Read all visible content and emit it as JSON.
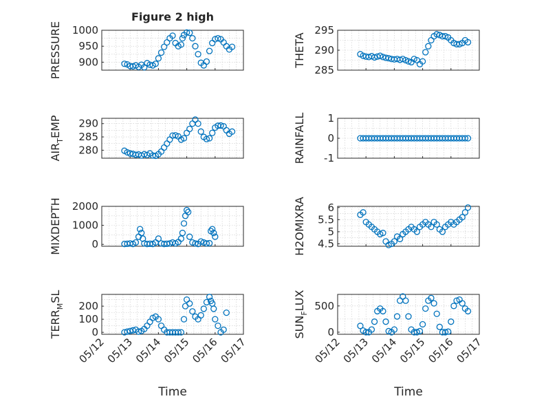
{
  "figure": {
    "title": "Figure 2 high",
    "xlabel": "Time",
    "marker_color": "#0072bd"
  },
  "chart_data": [
    {
      "type": "scatter",
      "ylabel": "PRESSURE",
      "ylabel_sub": "",
      "ylabel_tail": "",
      "ylim": [
        875,
        1000
      ],
      "yticks": [
        900,
        950,
        1000
      ],
      "xlim": [
        0,
        5
      ],
      "xticks": [
        0,
        1,
        2,
        3,
        4,
        5
      ],
      "xticklabels": [
        "05/12",
        "05/13",
        "05/14",
        "05/15",
        "05/16",
        "05/17"
      ],
      "x": [
        0.8,
        0.9,
        1.0,
        1.1,
        1.2,
        1.3,
        1.4,
        1.5,
        1.6,
        1.7,
        1.8,
        1.9,
        2.0,
        2.1,
        2.2,
        2.3,
        2.4,
        2.5,
        2.6,
        2.7,
        2.8,
        2.85,
        2.9,
        3.0,
        3.1,
        3.2,
        3.3,
        3.4,
        3.5,
        3.6,
        3.7,
        3.8,
        3.9,
        4.0,
        4.1,
        4.2,
        4.3,
        4.4,
        4.5,
        4.6
      ],
      "y": [
        895,
        893,
        888,
        887,
        890,
        885,
        892,
        884,
        897,
        892,
        890,
        895,
        912,
        930,
        948,
        962,
        975,
        983,
        960,
        950,
        955,
        975,
        985,
        993,
        992,
        975,
        950,
        925,
        898,
        890,
        902,
        935,
        960,
        972,
        975,
        972,
        962,
        950,
        940,
        948
      ]
    },
    {
      "type": "scatter",
      "ylabel": "THETA",
      "ylabel_sub": "",
      "ylabel_tail": "",
      "ylim": [
        285,
        295
      ],
      "yticks": [
        285,
        290,
        295
      ],
      "xlim": [
        0,
        5
      ],
      "xticks": [
        0,
        1,
        2,
        3,
        4,
        5
      ],
      "xticklabels": [
        "05/12",
        "05/13",
        "05/14",
        "05/15",
        "05/16",
        "05/17"
      ],
      "x": [
        0.8,
        0.9,
        1.0,
        1.1,
        1.2,
        1.3,
        1.4,
        1.5,
        1.6,
        1.7,
        1.8,
        1.9,
        2.0,
        2.1,
        2.2,
        2.3,
        2.4,
        2.5,
        2.6,
        2.7,
        2.8,
        2.9,
        3.0,
        3.1,
        3.2,
        3.3,
        3.4,
        3.5,
        3.6,
        3.7,
        3.8,
        3.9,
        4.0,
        4.1,
        4.2,
        4.3,
        4.4,
        4.5,
        4.6
      ],
      "y": [
        289.0,
        288.6,
        288.4,
        288.3,
        288.5,
        288.2,
        288.4,
        288.6,
        288.3,
        288.1,
        288.0,
        287.8,
        287.7,
        287.8,
        287.6,
        287.8,
        287.5,
        287.2,
        287.0,
        287.8,
        287.5,
        286.5,
        287.2,
        289.5,
        291.0,
        292.5,
        293.5,
        294.0,
        293.8,
        293.5,
        293.5,
        293.2,
        292.5,
        291.8,
        291.5,
        291.5,
        291.8,
        292.5,
        292.0
      ]
    },
    {
      "type": "scatter",
      "ylabel": "AIR",
      "ylabel_sub": "T",
      "ylabel_tail": "EMP",
      "ylim": [
        277,
        292
      ],
      "yticks": [
        280,
        285,
        290
      ],
      "xlim": [
        0,
        5
      ],
      "xticks": [
        0,
        1,
        2,
        3,
        4,
        5
      ],
      "xticklabels": [
        "05/12",
        "05/13",
        "05/14",
        "05/15",
        "05/16",
        "05/17"
      ],
      "x": [
        0.8,
        0.9,
        1.0,
        1.1,
        1.2,
        1.3,
        1.4,
        1.5,
        1.6,
        1.7,
        1.8,
        1.9,
        2.0,
        2.1,
        2.2,
        2.3,
        2.4,
        2.5,
        2.6,
        2.7,
        2.8,
        2.9,
        3.0,
        3.1,
        3.2,
        3.3,
        3.4,
        3.5,
        3.6,
        3.7,
        3.8,
        3.9,
        4.0,
        4.1,
        4.2,
        4.3,
        4.4,
        4.5,
        4.6
      ],
      "y": [
        279.8,
        279.2,
        278.8,
        278.6,
        278.3,
        278.4,
        278.0,
        278.5,
        278.2,
        278.8,
        278.0,
        277.9,
        278.5,
        279.5,
        281.0,
        282.5,
        284.0,
        285.5,
        285.6,
        285.2,
        284.0,
        284.5,
        286.5,
        288.0,
        290.0,
        291.5,
        290.0,
        287.0,
        285.0,
        284.2,
        284.5,
        286.5,
        288.5,
        289.2,
        289.3,
        289.0,
        287.5,
        286.2,
        287.0
      ]
    },
    {
      "type": "scatter",
      "ylabel": "RAINFALL",
      "ylabel_sub": "",
      "ylabel_tail": "",
      "ylim": [
        -1,
        1
      ],
      "yticks": [
        -1,
        0,
        1
      ],
      "xlim": [
        0,
        5
      ],
      "xticks": [
        0,
        1,
        2,
        3,
        4,
        5
      ],
      "xticklabels": [
        "05/12",
        "05/13",
        "05/14",
        "05/15",
        "05/16",
        "05/17"
      ],
      "x": [
        0.8,
        0.9,
        1.0,
        1.1,
        1.2,
        1.3,
        1.4,
        1.5,
        1.6,
        1.7,
        1.8,
        1.9,
        2.0,
        2.1,
        2.2,
        2.3,
        2.4,
        2.5,
        2.6,
        2.7,
        2.8,
        2.9,
        3.0,
        3.1,
        3.2,
        3.3,
        3.4,
        3.5,
        3.6,
        3.7,
        3.8,
        3.9,
        4.0,
        4.1,
        4.2,
        4.3,
        4.4,
        4.5,
        4.6
      ],
      "y": [
        0,
        0,
        0,
        0,
        0,
        0,
        0,
        0,
        0,
        0,
        0,
        0,
        0,
        0,
        0,
        0,
        0,
        0,
        0,
        0,
        0,
        0,
        0,
        0,
        0,
        0,
        0,
        0,
        0,
        0,
        0,
        0,
        0,
        0,
        0,
        0,
        0,
        0,
        0
      ]
    },
    {
      "type": "scatter",
      "ylabel": "MIXDEPTH",
      "ylabel_sub": "",
      "ylabel_tail": "",
      "ylim": [
        -100,
        2000
      ],
      "yticks": [
        0,
        1000,
        2000
      ],
      "xlim": [
        0,
        5
      ],
      "xticks": [
        0,
        1,
        2,
        3,
        4,
        5
      ],
      "xticklabels": [
        "05/12",
        "05/13",
        "05/14",
        "05/15",
        "05/16",
        "05/17"
      ],
      "x": [
        0.8,
        0.9,
        1.0,
        1.1,
        1.2,
        1.3,
        1.35,
        1.4,
        1.45,
        1.5,
        1.6,
        1.7,
        1.8,
        1.9,
        2.0,
        2.1,
        2.2,
        2.3,
        2.4,
        2.5,
        2.6,
        2.7,
        2.8,
        2.85,
        2.9,
        2.95,
        3.0,
        3.05,
        3.1,
        3.2,
        3.3,
        3.4,
        3.5,
        3.6,
        3.7,
        3.8,
        3.85,
        3.9,
        3.95,
        4.0
      ],
      "y": [
        20,
        30,
        50,
        20,
        100,
        400,
        800,
        600,
        300,
        50,
        20,
        30,
        20,
        100,
        300,
        50,
        20,
        30,
        50,
        100,
        50,
        120,
        300,
        600,
        1100,
        1500,
        1800,
        1700,
        400,
        100,
        50,
        20,
        150,
        100,
        50,
        60,
        700,
        800,
        600,
        400
      ]
    },
    {
      "type": "scatter",
      "ylabel": "H2OMIXRA",
      "ylabel_sub": "",
      "ylabel_tail": "",
      "ylim": [
        4.4,
        6.05
      ],
      "yticks": [
        4.5,
        5,
        5.5,
        6
      ],
      "xlim": [
        0,
        5
      ],
      "xticks": [
        0,
        1,
        2,
        3,
        4,
        5
      ],
      "xticklabels": [
        "05/12",
        "05/13",
        "05/14",
        "05/15",
        "05/16",
        "05/17"
      ],
      "x": [
        0.8,
        0.9,
        1.0,
        1.1,
        1.2,
        1.3,
        1.4,
        1.5,
        1.6,
        1.7,
        1.8,
        1.9,
        2.0,
        2.1,
        2.2,
        2.3,
        2.4,
        2.5,
        2.6,
        2.7,
        2.8,
        2.9,
        3.0,
        3.1,
        3.2,
        3.3,
        3.4,
        3.5,
        3.6,
        3.7,
        3.8,
        3.9,
        4.0,
        4.1,
        4.2,
        4.3,
        4.4,
        4.5,
        4.6
      ],
      "y": [
        5.7,
        5.8,
        5.4,
        5.3,
        5.2,
        5.1,
        5.0,
        4.9,
        4.95,
        4.6,
        4.45,
        4.5,
        4.6,
        4.8,
        4.7,
        4.9,
        5.0,
        5.1,
        5.2,
        5.1,
        5.0,
        5.2,
        5.3,
        5.4,
        5.3,
        5.2,
        5.4,
        5.3,
        5.1,
        5.0,
        5.2,
        5.3,
        5.4,
        5.3,
        5.4,
        5.5,
        5.6,
        5.8,
        6.0
      ]
    },
    {
      "type": "scatter",
      "ylabel": "TERR",
      "ylabel_sub": "M",
      "ylabel_tail": "SL",
      "ylim": [
        -15,
        290
      ],
      "yticks": [
        0,
        100,
        200
      ],
      "xlim": [
        0,
        5
      ],
      "xticks": [
        0,
        1,
        2,
        3,
        4,
        5
      ],
      "xticklabels": [
        "05/12",
        "05/13",
        "05/14",
        "05/15",
        "05/16",
        "05/17"
      ],
      "x": [
        0.8,
        0.9,
        1.0,
        1.1,
        1.2,
        1.3,
        1.4,
        1.5,
        1.6,
        1.7,
        1.8,
        1.9,
        2.0,
        2.1,
        2.2,
        2.3,
        2.4,
        2.5,
        2.6,
        2.7,
        2.8,
        2.9,
        2.95,
        3.0,
        3.1,
        3.2,
        3.3,
        3.4,
        3.5,
        3.6,
        3.7,
        3.8,
        3.85,
        3.9,
        3.95,
        4.0,
        4.1,
        4.2,
        4.3,
        4.4
      ],
      "y": [
        0,
        5,
        10,
        15,
        20,
        5,
        10,
        25,
        50,
        80,
        110,
        120,
        100,
        50,
        20,
        0,
        0,
        0,
        0,
        0,
        0,
        100,
        200,
        250,
        220,
        160,
        120,
        100,
        130,
        180,
        230,
        270,
        240,
        220,
        180,
        100,
        50,
        0,
        20,
        150
      ]
    },
    {
      "type": "scatter",
      "ylabel": "SUN",
      "ylabel_sub": "F",
      "ylabel_tail": "LUX",
      "ylim": [
        -40,
        720
      ],
      "yticks": [
        0,
        500
      ],
      "xlim": [
        0,
        5
      ],
      "xticks": [
        0,
        1,
        2,
        3,
        4,
        5
      ],
      "xticklabels": [
        "05/12",
        "05/13",
        "05/14",
        "05/15",
        "05/16",
        "05/17"
      ],
      "x": [
        0.8,
        0.9,
        1.0,
        1.1,
        1.2,
        1.3,
        1.4,
        1.5,
        1.6,
        1.7,
        1.8,
        1.9,
        2.0,
        2.1,
        2.2,
        2.3,
        2.4,
        2.5,
        2.6,
        2.7,
        2.8,
        2.9,
        3.0,
        3.1,
        3.2,
        3.3,
        3.4,
        3.5,
        3.6,
        3.7,
        3.8,
        3.9,
        4.0,
        4.1,
        4.2,
        4.3,
        4.4,
        4.5,
        4.6
      ],
      "y": [
        120,
        30,
        0,
        0,
        50,
        200,
        400,
        450,
        400,
        200,
        20,
        0,
        50,
        300,
        600,
        680,
        600,
        300,
        50,
        0,
        0,
        20,
        150,
        450,
        600,
        650,
        550,
        350,
        100,
        0,
        0,
        10,
        200,
        500,
        600,
        620,
        550,
        450,
        400
      ]
    }
  ]
}
